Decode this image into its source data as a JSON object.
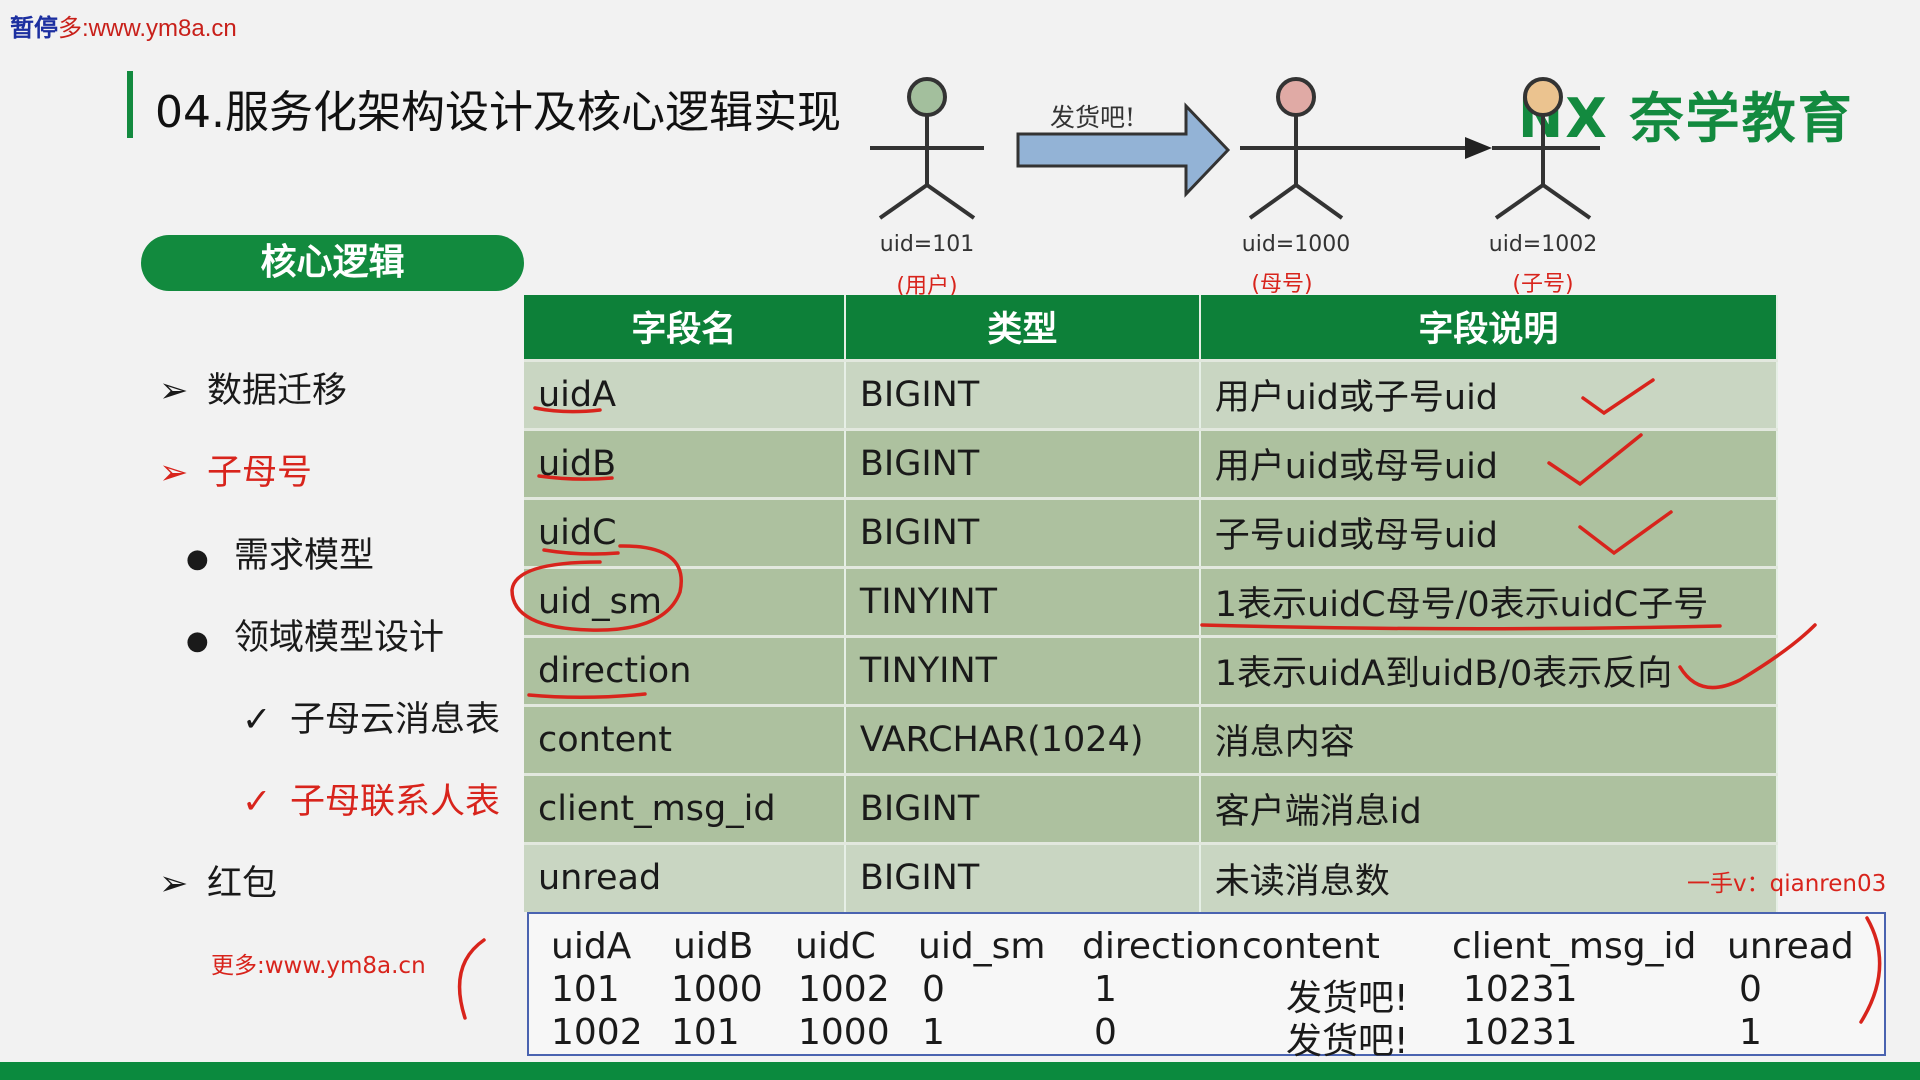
{
  "watermark_top": {
    "pause": "暂停",
    "text": "多:www.ym8a.cn"
  },
  "title": "04.服务化架构设计及核心逻辑实现",
  "logo": "NX 奈学教育",
  "diagram": {
    "arrow_label": "发货吧!",
    "figures": [
      {
        "uid": "uid=101",
        "role": "(用户)",
        "color": "#a3bf9d"
      },
      {
        "uid": "uid=1000",
        "role": "(母号)",
        "color": "#e0aaa5"
      },
      {
        "uid": "uid=1002",
        "role": "(子号)",
        "color": "#ebc38f"
      }
    ]
  },
  "section_pill": "核心逻辑",
  "nav": [
    {
      "marker": "➢",
      "label": "数据迁移",
      "active": false
    },
    {
      "marker": "➢",
      "label": "子母号",
      "active": true
    },
    {
      "marker": "●",
      "label": "需求模型",
      "active": false
    },
    {
      "marker": "●",
      "label": "领域模型设计",
      "active": false
    },
    {
      "marker": "✓",
      "label": "子母云消息表",
      "active": false
    },
    {
      "marker": "✓",
      "label": "子母联系人表",
      "active": true
    },
    {
      "marker": "➢",
      "label": "红包",
      "active": false
    }
  ],
  "table": {
    "headers": [
      "字段名",
      "类型",
      "字段说明"
    ],
    "rows": [
      [
        "uidA",
        "BIGINT",
        "用户uid或子号uid"
      ],
      [
        "uidB",
        "BIGINT",
        "用户uid或母号uid"
      ],
      [
        "uidC",
        "BIGINT",
        "子号uid或母号uid"
      ],
      [
        "uid_sm",
        "TINYINT",
        "1表示uidC母号/0表示uidC子号"
      ],
      [
        "direction",
        "TINYINT",
        "1表示uidA到uidB/0表示反向"
      ],
      [
        "content",
        "VARCHAR(1024)",
        "消息内容"
      ],
      [
        "client_msg_id",
        "BIGINT",
        "客户端消息id"
      ],
      [
        "unread",
        "BIGINT",
        "未读消息数"
      ]
    ]
  },
  "example": {
    "headers": [
      "uidA",
      "uidB",
      "uidC",
      "uid_sm",
      "direction",
      "content",
      "client_msg_id",
      "unread"
    ],
    "rows": [
      [
        "101",
        "1000",
        "1002",
        "0",
        "1",
        "发货吧!",
        "10231",
        "0"
      ],
      [
        "1002",
        "101",
        "1000",
        "1",
        "0",
        "发货吧!",
        "10231",
        "1"
      ]
    ]
  },
  "watermark_bottom": "更多:www.ym8a.cn",
  "watermark_right": "一手v：qianren03",
  "colors": {
    "brand_green": "#0d8039",
    "annotation_red": "#d8241c"
  }
}
